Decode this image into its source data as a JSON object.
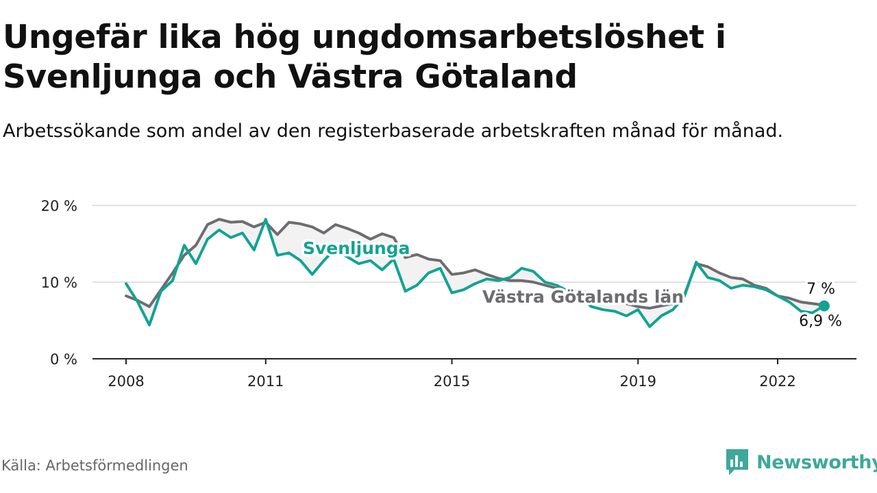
{
  "header": {
    "title": "Ungefär lika hög ungdomsarbetslöshet i Svenljunga och Västra Götaland",
    "subtitle": "Arbetssökande som andel av den registerbaserade arbetskraften månad för månad."
  },
  "footer": {
    "source": "Källa: Arbetsförmedlingen",
    "brand": "Newsworthy"
  },
  "colors": {
    "svenljunga": "#12a393",
    "vastra_gotaland": "#6e6c70",
    "grid": "#d9d9d9",
    "axis": "#222222",
    "band": "#f2f2f2",
    "brand": "#3ea89a"
  },
  "chart_data": {
    "type": "line",
    "title": "Ungefär lika hög ungdomsarbetslöshet i Svenljunga och Västra Götaland",
    "ylabel": "",
    "xlabel": "",
    "ylim": [
      0,
      20
    ],
    "xlim": [
      2007.5,
      2024.2
    ],
    "y_ticks": [
      0,
      10,
      20
    ],
    "y_tick_labels": [
      "0 %",
      "10 %",
      "20 %"
    ],
    "x_ticks": [
      2008,
      2011,
      2015,
      2019,
      2022
    ],
    "x_tick_labels": [
      "2008",
      "2011",
      "2015",
      "2019",
      "2022"
    ],
    "grid": true,
    "series": [
      {
        "key": "vg",
        "name": "Västra Götalands län",
        "label": "Västra Götalands län",
        "end_label": "7 %",
        "end_value": 7.0,
        "x": [
          2008.0,
          2008.25,
          2008.5,
          2008.75,
          2009.0,
          2009.25,
          2009.5,
          2009.75,
          2010.0,
          2010.25,
          2010.5,
          2010.75,
          2011.0,
          2011.25,
          2011.5,
          2011.75,
          2012.0,
          2012.25,
          2012.5,
          2012.75,
          2013.0,
          2013.25,
          2013.5,
          2013.75,
          2014.0,
          2014.25,
          2014.5,
          2014.75,
          2015.0,
          2015.25,
          2015.5,
          2015.75,
          2016.0,
          2016.25,
          2016.5,
          2016.75,
          2017.0,
          2017.25,
          2017.5,
          2017.75,
          2018.0,
          2018.25,
          2018.5,
          2018.75,
          2019.0,
          2019.25,
          2019.5,
          2019.75,
          2020.0,
          2020.25,
          2020.5,
          2020.75,
          2021.0,
          2021.25,
          2021.5,
          2021.75,
          2022.0,
          2022.25,
          2022.5,
          2022.75,
          2023.0
        ],
        "values": [
          8.2,
          7.6,
          6.8,
          9.0,
          11.2,
          13.5,
          14.8,
          17.5,
          18.2,
          17.8,
          17.9,
          17.2,
          17.8,
          16.2,
          17.8,
          17.6,
          17.2,
          16.4,
          17.5,
          17.0,
          16.4,
          15.6,
          16.3,
          15.8,
          13.2,
          13.6,
          13.0,
          12.8,
          11.0,
          11.2,
          11.6,
          11.0,
          10.5,
          10.2,
          10.2,
          10.0,
          9.6,
          9.2,
          9.0,
          8.8,
          8.5,
          7.8,
          7.6,
          7.2,
          6.8,
          6.6,
          6.9,
          7.2,
          8.4,
          12.4,
          12.0,
          11.2,
          10.6,
          10.4,
          9.6,
          9.2,
          8.2,
          7.9,
          7.4,
          7.2,
          7.0
        ]
      },
      {
        "key": "svl",
        "name": "Svenljunga",
        "label": "Svenljunga",
        "end_label": "6,9 %",
        "end_value": 6.9,
        "x": [
          2008.0,
          2008.25,
          2008.5,
          2008.75,
          2009.0,
          2009.25,
          2009.5,
          2009.75,
          2010.0,
          2010.25,
          2010.5,
          2010.75,
          2011.0,
          2011.25,
          2011.5,
          2011.75,
          2012.0,
          2012.25,
          2012.5,
          2012.75,
          2013.0,
          2013.25,
          2013.5,
          2013.75,
          2014.0,
          2014.25,
          2014.5,
          2014.75,
          2015.0,
          2015.25,
          2015.5,
          2015.75,
          2016.0,
          2016.25,
          2016.5,
          2016.75,
          2017.0,
          2017.25,
          2017.5,
          2017.75,
          2018.0,
          2018.25,
          2018.5,
          2018.75,
          2019.0,
          2019.25,
          2019.5,
          2019.75,
          2020.0,
          2020.25,
          2020.5,
          2020.75,
          2021.0,
          2021.25,
          2021.5,
          2021.75,
          2022.0,
          2022.25,
          2022.5,
          2022.75,
          2023.0
        ],
        "values": [
          9.8,
          7.4,
          4.4,
          8.8,
          10.2,
          14.8,
          12.4,
          15.6,
          16.8,
          15.8,
          16.4,
          14.2,
          18.2,
          13.5,
          13.8,
          12.8,
          11.0,
          12.8,
          14.4,
          13.3,
          12.4,
          12.8,
          11.6,
          13.0,
          8.8,
          9.6,
          11.2,
          11.8,
          8.6,
          9.0,
          9.8,
          10.4,
          10.2,
          10.6,
          11.8,
          11.4,
          10.0,
          9.6,
          8.8,
          8.0,
          6.8,
          6.4,
          6.2,
          5.6,
          6.4,
          4.2,
          5.6,
          6.4,
          8.2,
          12.6,
          10.6,
          10.2,
          9.2,
          9.6,
          9.4,
          9.0,
          8.2,
          7.4,
          6.2,
          6.0,
          6.9
        ]
      }
    ]
  }
}
